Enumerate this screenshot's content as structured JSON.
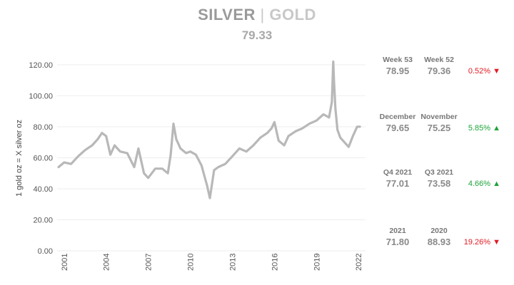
{
  "header": {
    "title_silver": "SILVER",
    "title_sep": "|",
    "title_gold": "GOLD",
    "current_ratio": "79.33"
  },
  "chart_data": {
    "type": "line",
    "title": "SILVER | GOLD",
    "ylabel": "1 gold oz = X silver oz",
    "xlabel": "",
    "ylim": [
      0,
      125
    ],
    "xlim": [
      2000.5,
      2022.5
    ],
    "y_ticks": [
      "0.00",
      "20.00",
      "40.00",
      "60.00",
      "80.00",
      "100.00",
      "120.00"
    ],
    "x_ticks": [
      "2001",
      "2004",
      "2007",
      "2010",
      "2013",
      "2016",
      "2019",
      "2022"
    ],
    "grid": "horizontal",
    "line_color": "#b8b8b8",
    "series": [
      {
        "x": [
          2000.6,
          2001.0,
          2001.5,
          2002.0,
          2002.5,
          2003.0,
          2003.4,
          2003.7,
          2004.0,
          2004.3,
          2004.6,
          2005.0,
          2005.5,
          2006.0,
          2006.3,
          2006.7,
          2007.0,
          2007.5,
          2008.0,
          2008.4,
          2008.6,
          2008.8,
          2009.0,
          2009.3,
          2009.7,
          2010.0,
          2010.4,
          2010.8,
          2011.2,
          2011.4,
          2011.7,
          2012.0,
          2012.5,
          2013.0,
          2013.5,
          2014.0,
          2014.5,
          2015.0,
          2015.5,
          2015.8,
          2016.0,
          2016.3,
          2016.7,
          2017.0,
          2017.5,
          2018.0,
          2018.5,
          2019.0,
          2019.5,
          2019.9,
          2020.1,
          2020.2,
          2020.25,
          2020.35,
          2020.5,
          2020.7,
          2021.0,
          2021.3,
          2021.6,
          2021.9,
          2022.1
        ],
        "y": [
          54,
          57,
          56,
          61,
          65,
          68,
          72,
          76,
          74,
          62,
          68,
          64,
          63,
          54,
          66,
          50,
          47,
          53,
          53,
          50,
          62,
          82,
          72,
          66,
          63,
          64,
          62,
          55,
          42,
          34,
          52,
          54,
          56,
          61,
          66,
          64,
          68,
          73,
          76,
          79,
          83,
          71,
          68,
          74,
          77,
          79,
          82,
          84,
          88,
          86,
          96,
          122,
          110,
          92,
          78,
          73,
          70,
          67,
          74,
          80,
          80
        ]
      }
    ]
  },
  "stats": [
    {
      "label_a": "Week 53",
      "value_a": "78.95",
      "label_b": "Week 52",
      "value_b": "79.36",
      "change": "0.52%",
      "direction": "down",
      "arrow": "▼"
    },
    {
      "label_a": "December",
      "value_a": "79.65",
      "label_b": "November",
      "value_b": "75.25",
      "change": "5.85%",
      "direction": "up",
      "arrow": "▲"
    },
    {
      "label_a": "Q4 2021",
      "value_a": "77.01",
      "label_b": "Q3 2021",
      "value_b": "73.58",
      "change": "4.66%",
      "direction": "up",
      "arrow": "▲"
    },
    {
      "label_a": "2021",
      "value_a": "71.80",
      "label_b": "2020",
      "value_b": "88.93",
      "change": "19.26%",
      "direction": "down",
      "arrow": "▼"
    }
  ],
  "colors": {
    "up": "#1fa33a",
    "down": "#e01b24",
    "line": "#b8b8b8",
    "grid": "#eeeeee"
  }
}
